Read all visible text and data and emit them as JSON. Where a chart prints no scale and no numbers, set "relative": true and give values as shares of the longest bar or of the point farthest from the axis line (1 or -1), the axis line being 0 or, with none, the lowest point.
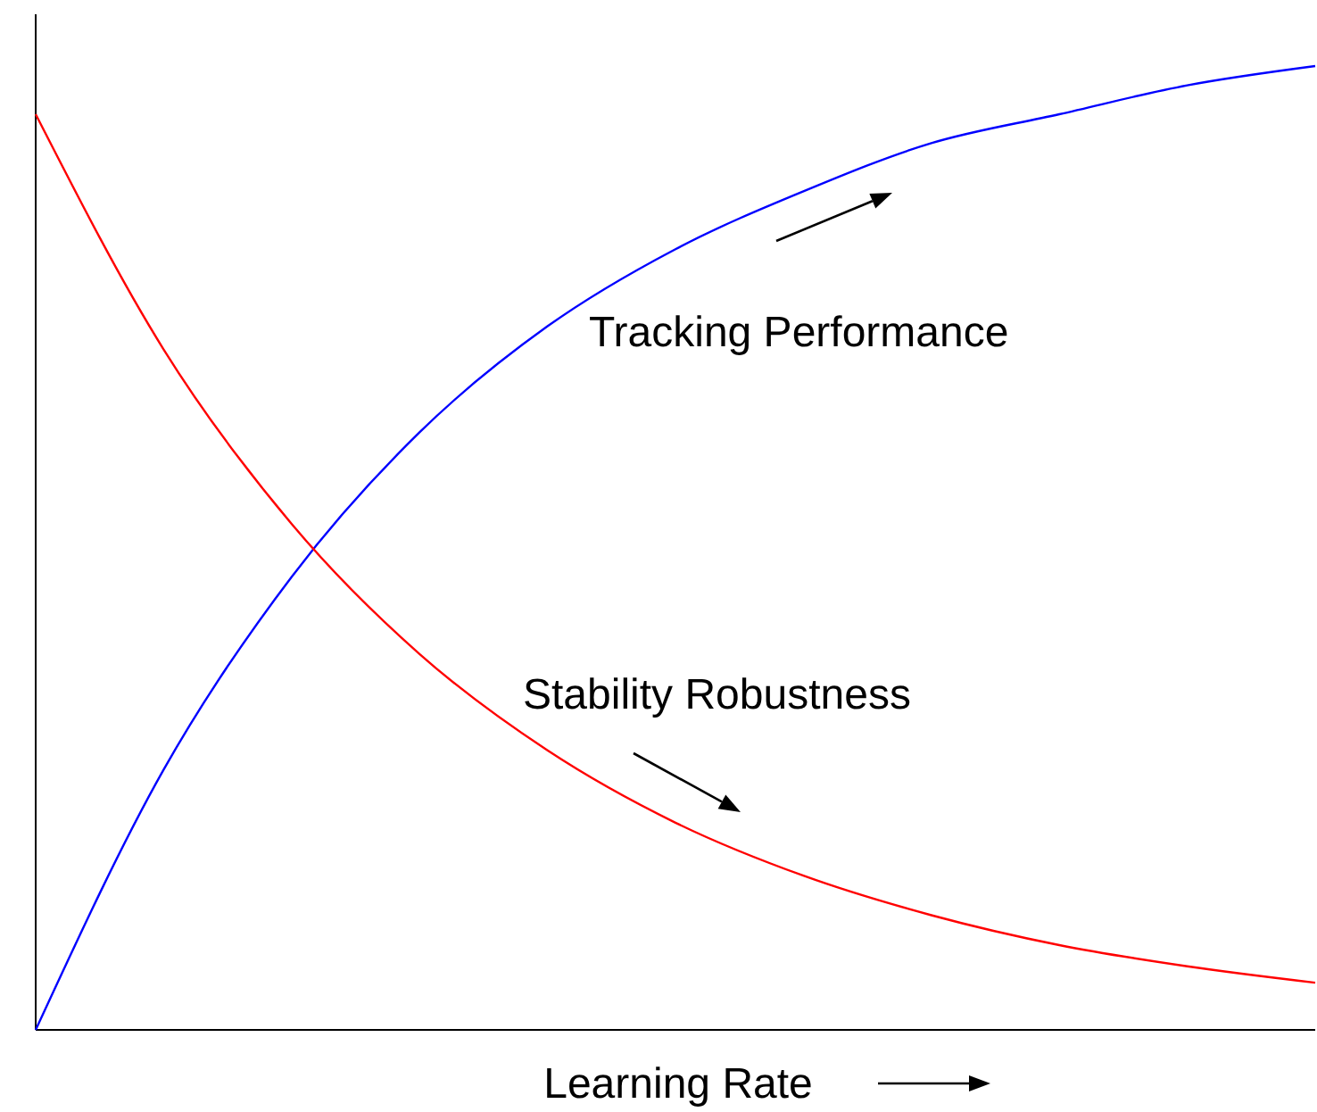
{
  "chart_data": {
    "type": "line",
    "relative": true,
    "xlabel": "Learning Rate",
    "categories": [
      null,
      null,
      null,
      null,
      null,
      null,
      null,
      null,
      null,
      null,
      null
    ],
    "series": [
      {
        "name": "Tracking Performance",
        "color": "#0000ff",
        "values": [
          0,
          0.27,
          0.47,
          0.62,
          0.73,
          0.81,
          0.87,
          0.92,
          0.95,
          0.98,
          1
        ]
      },
      {
        "name": "Stability Robustness",
        "color": "#ff0000",
        "values": [
          0.95,
          0.706,
          0.525,
          0.39,
          0.29,
          0.215,
          0.16,
          0.119,
          0.088,
          0.066,
          0.049
        ]
      }
    ],
    "marker": "none",
    "line_style": "solid",
    "grid": false
  }
}
